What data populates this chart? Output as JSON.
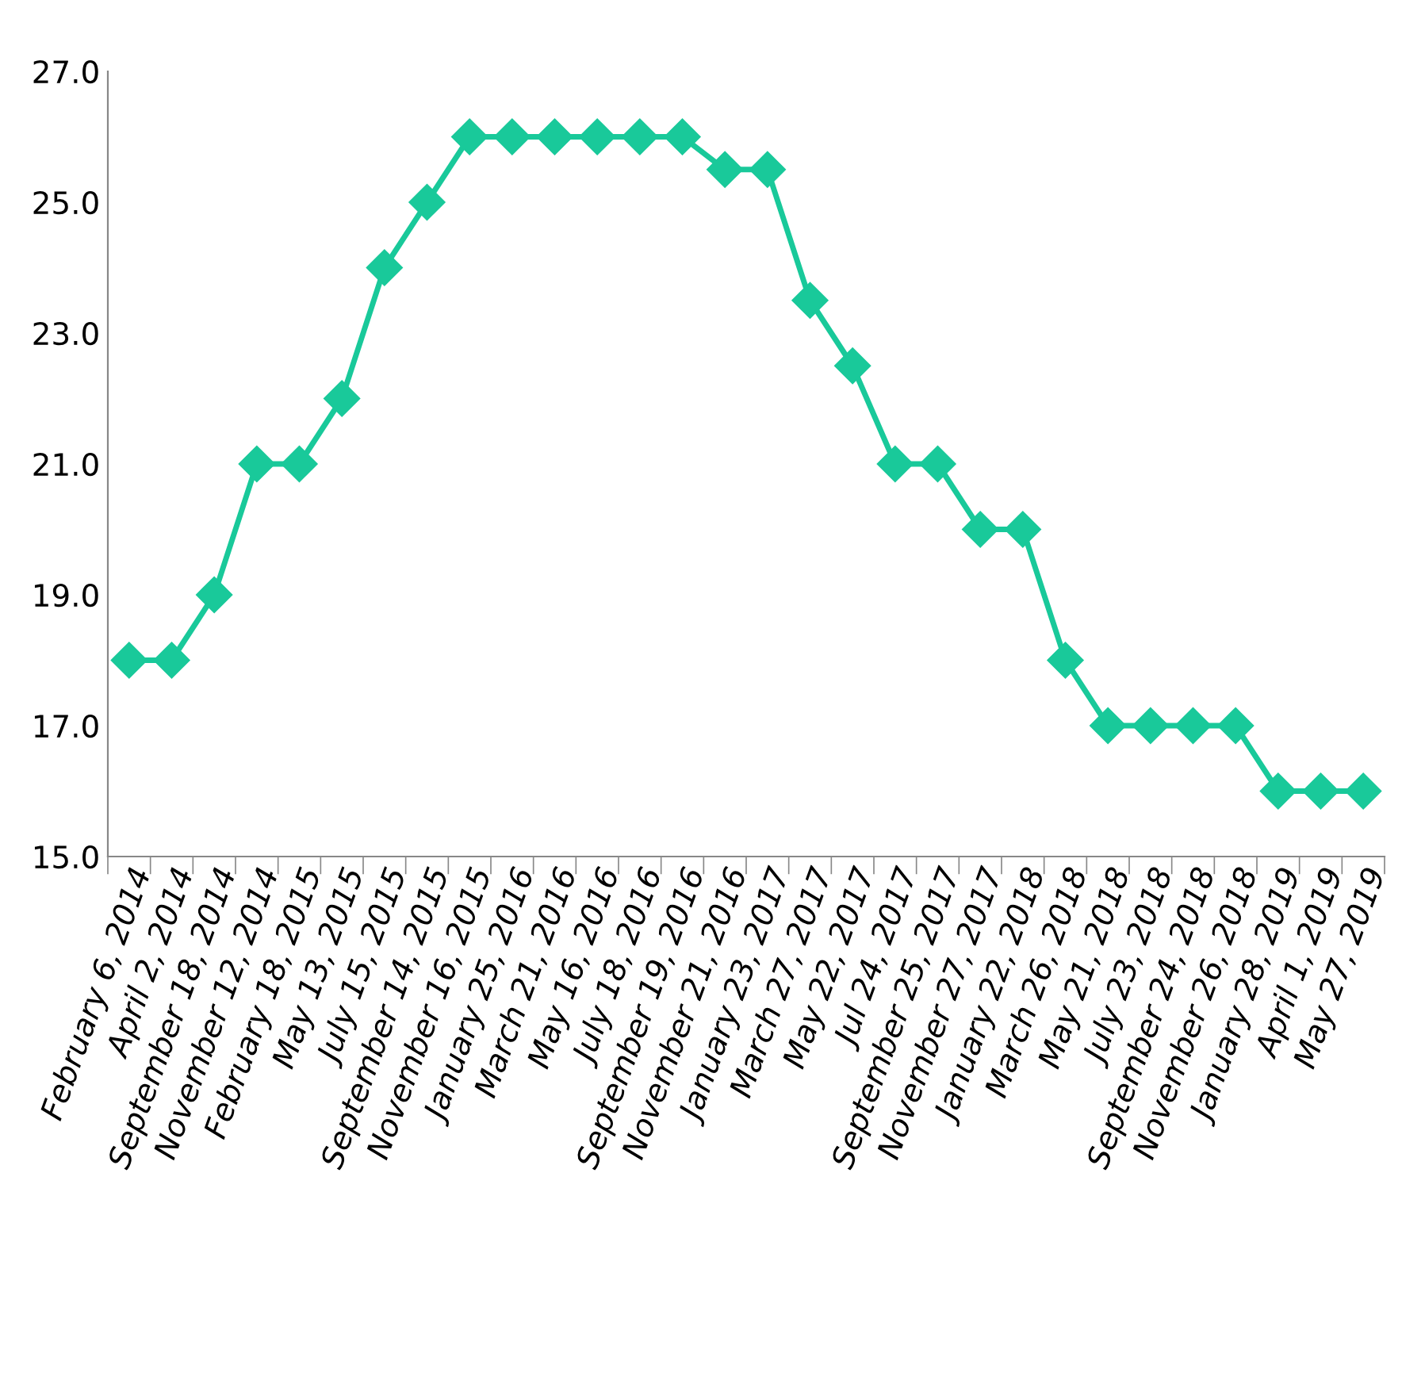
{
  "chart_data": {
    "type": "line",
    "categories": [
      "February 6, 2014",
      "April 2, 2014",
      "September 18, 2014",
      "November 12, 2014",
      "February 18, 2015",
      "May 13, 2015",
      "July 15, 2015",
      "September 14, 2015",
      "November 16, 2015",
      "January 25, 2016",
      "March 21, 2016",
      "May 16, 2016",
      "July 18, 2016",
      "September 19, 2016",
      "November 21, 2016",
      "January 23, 2017",
      "March 27, 2017",
      "May 22, 2017",
      "Jul 24, 2017",
      "September 25, 2017",
      "November 27, 2017",
      "January 22, 2018",
      "March 26, 2018",
      "May 21, 2018",
      "July 23, 2018",
      "September 24, 2018",
      "November 26, 2018",
      "January 28, 2019",
      "April 1, 2019",
      "May 27, 2019"
    ],
    "series": [
      {
        "color": "#19c99a",
        "values": [
          18,
          18,
          19,
          21,
          21,
          22,
          24,
          25,
          26,
          26,
          26,
          26,
          26,
          26,
          25.5,
          25.5,
          23.5,
          22.5,
          21,
          21,
          20,
          20,
          18,
          17,
          17,
          17,
          17,
          16,
          16,
          16
        ]
      }
    ],
    "ylim": [
      15,
      27
    ],
    "yticks": [
      {
        "value": 15,
        "label": "15.0"
      },
      {
        "value": 17,
        "label": "17.0"
      },
      {
        "value": 19,
        "label": "19.0"
      },
      {
        "value": 21,
        "label": "21.0"
      },
      {
        "value": 23,
        "label": "23.0"
      },
      {
        "value": 25,
        "label": "25.0"
      },
      {
        "value": 27,
        "label": "27.0"
      }
    ],
    "grid": false,
    "legend": false,
    "marker": "diamond",
    "line_style": "solid"
  }
}
